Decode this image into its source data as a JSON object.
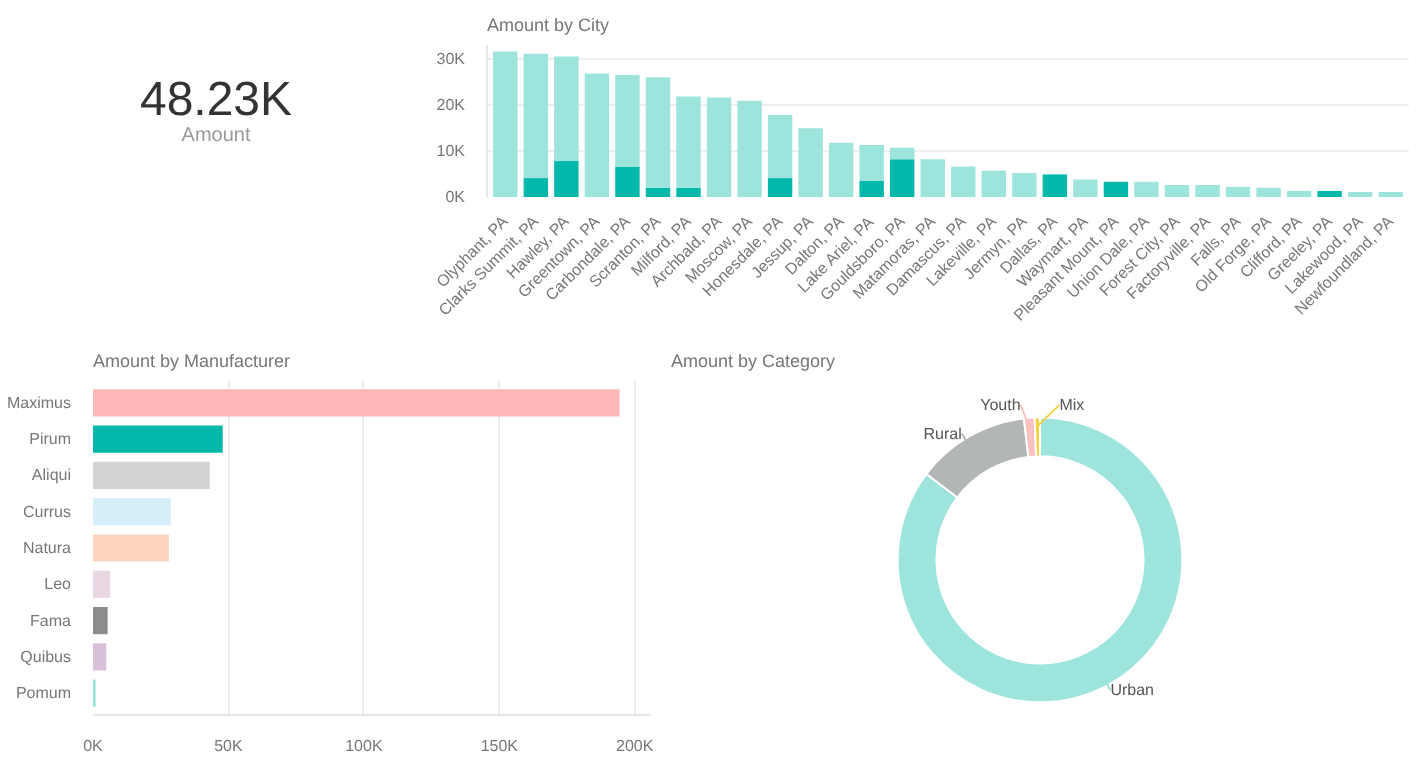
{
  "chart_data": [
    {
      "type": "other",
      "annotations": [
        "48.23K",
        "Amount"
      ]
    },
    {
      "type": "bar",
      "title": "Amount by City",
      "stacked": true,
      "grid": "y",
      "categories": [
        "Olyphant, PA",
        "Clarks Summit, PA",
        "Hawley, PA",
        "Greentown, PA",
        "Carbondale, PA",
        "Scranton, PA",
        "Milford, PA",
        "Archbald, PA",
        "Moscow, PA",
        "Honesdale, PA",
        "Jessup, PA",
        "Dalton, PA",
        "Lake Ariel, PA",
        "Gouldsboro, PA",
        "Matamoras, PA",
        "Damascus, PA",
        "Lakeville, PA",
        "Jermyn, PA",
        "Dallas, PA",
        "Waymart, PA",
        "Pleasant Mount, PA",
        "Union Dale, PA",
        "Forest City, PA",
        "Factoryville, PA",
        "Falls, PA",
        "Old Forge, PA",
        "Clifford, PA",
        "Greeley, PA",
        "Lakewood, PA",
        "Newfoundland, PA"
      ],
      "series": [
        {
          "color": "#01b8aa",
          "values": [
            null,
            4100,
            7800,
            null,
            6600,
            2000,
            2000,
            null,
            null,
            4100,
            null,
            null,
            3500,
            8200,
            null,
            null,
            null,
            null,
            4900,
            null,
            3300,
            null,
            null,
            null,
            null,
            null,
            null,
            1300,
            null,
            null
          ]
        },
        {
          "color": "#9de4dc",
          "values": [
            31600,
            27000,
            22700,
            26800,
            19900,
            24000,
            19800,
            21600,
            20900,
            13700,
            14900,
            11800,
            7800,
            2500,
            8200,
            6600,
            5700,
            5200,
            null,
            3800,
            null,
            3300,
            2600,
            2600,
            2200,
            2000,
            1300,
            null,
            1100,
            1100
          ]
        }
      ],
      "ylim": [
        0,
        33000
      ],
      "yticks": [
        {
          "value": 0,
          "label": "0K"
        },
        {
          "value": 10000,
          "label": "10K"
        },
        {
          "value": 20000,
          "label": "20K"
        },
        {
          "value": 30000,
          "label": "30K"
        }
      ]
    },
    {
      "type": "bar",
      "title": "Amount by Manufacturer",
      "orientation": "horizontal",
      "grid": "x",
      "categories": [
        "Maximus",
        "Pirum",
        "Aliqui",
        "Currus",
        "Natura",
        "Leo",
        "Fama",
        "Quibus",
        "Pomum"
      ],
      "values": [
        194400,
        47900,
        43100,
        28700,
        28000,
        6300,
        5400,
        4900,
        1000
      ],
      "colors": [
        "#fdb7b7",
        "#01b8aa",
        "#d3d3d3",
        "#d6eef8",
        "#fdd3c0",
        "#e8d6e3",
        "#8c8c8c",
        "#d9c2d9",
        "#99e3dc"
      ],
      "xlim": [
        0,
        206000
      ],
      "xticks": [
        {
          "value": 0,
          "label": "0K"
        },
        {
          "value": 50000,
          "label": "50K"
        },
        {
          "value": 100000,
          "label": "100K"
        },
        {
          "value": 150000,
          "label": "150K"
        },
        {
          "value": 200000,
          "label": "200K"
        }
      ]
    },
    {
      "type": "donut",
      "title": "Amount by Category",
      "categories": [
        "Urban",
        "Rural",
        "Youth",
        "Mix"
      ],
      "values": [
        85.3,
        12.9,
        1.2,
        0.6
      ],
      "colors": [
        "#9de4dc",
        "#b3b6b7",
        "#fdc2c0",
        "#f5d33f"
      ]
    }
  ]
}
